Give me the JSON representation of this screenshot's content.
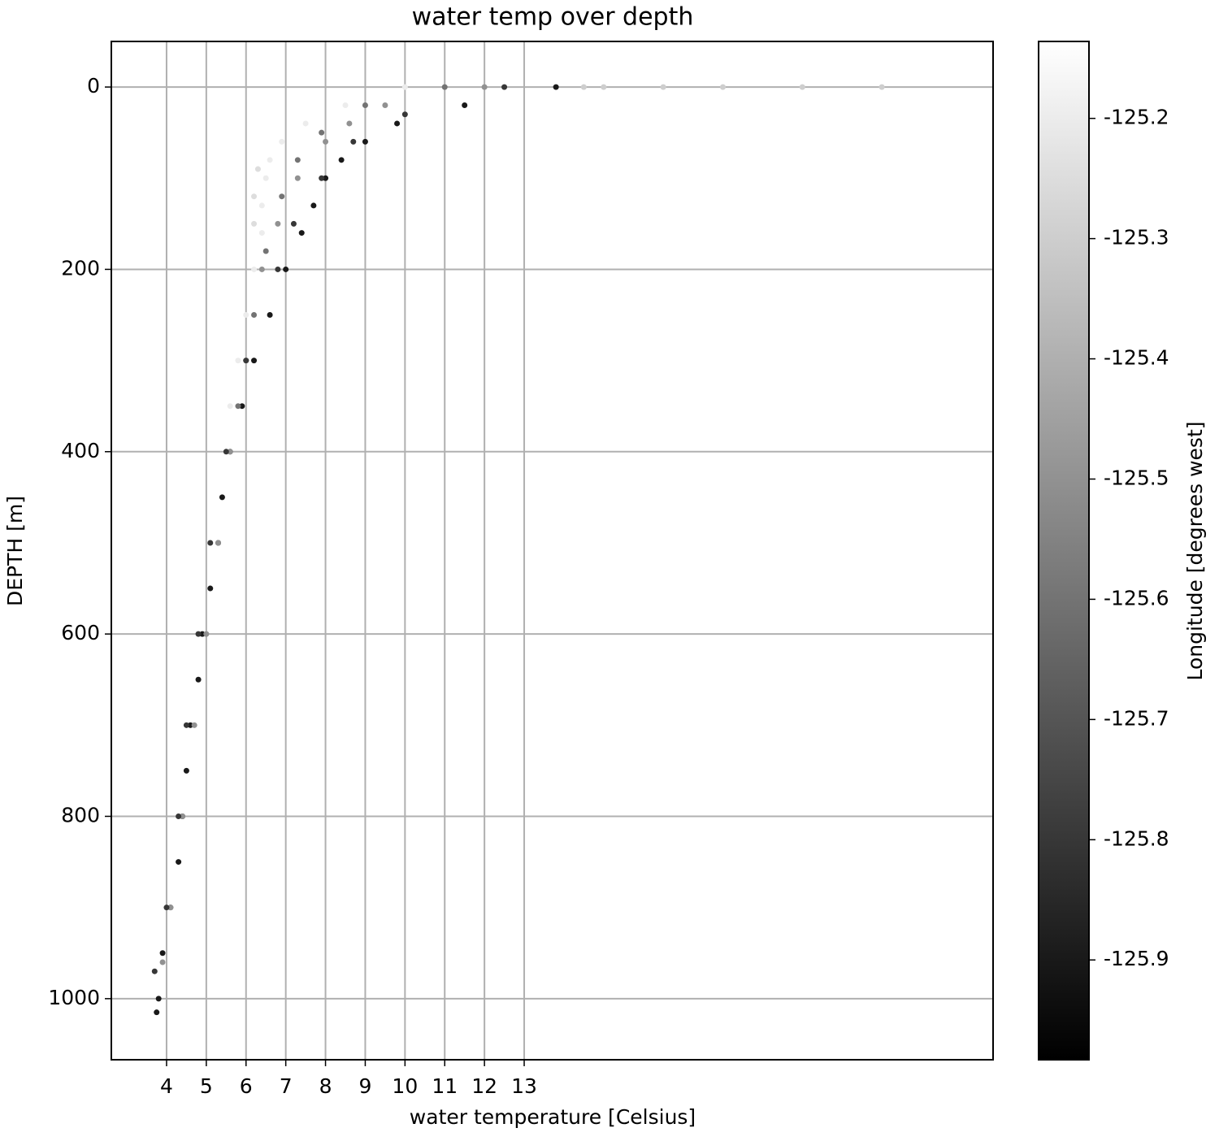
{
  "chart_data": {
    "type": "scatter",
    "title": "water temp over depth",
    "x_label": "water temperature [Celsius]",
    "y_label": "DEPTH [m]",
    "colorbar_label": "Longitude [degrees west]",
    "colormap": "gray",
    "grid": true,
    "xlim": [
      2.61,
      24.8
    ],
    "xticks": [
      4,
      5,
      6,
      7,
      8,
      9,
      10,
      11,
      12,
      13
    ],
    "ylim": [
      1067,
      -50
    ],
    "yticks": [
      0,
      200,
      400,
      600,
      800,
      1000
    ],
    "clim": [
      -125.983,
      -125.136
    ],
    "cticks": [
      -125.2,
      -125.3,
      -125.4,
      -125.5,
      -125.6,
      -125.7,
      -125.8,
      -125.9
    ],
    "x": [
      13.8,
      11.5,
      9.8,
      9.0,
      8.4,
      8.0,
      7.7,
      7.4,
      7.0,
      6.6,
      6.2,
      5.9,
      5.6,
      5.4,
      5.3,
      5.1,
      4.9,
      4.8,
      4.6,
      4.5,
      4.4,
      4.3,
      4.1,
      3.9,
      3.8,
      3.75,
      10,
      8.5,
      7.5,
      6.9,
      6.6,
      6.5,
      6.4,
      6.4,
      6.2,
      6.0,
      5.8,
      5.6,
      5.5,
      6.3,
      6.2,
      6.2,
      12,
      9.5,
      8.6,
      8.0,
      7.3,
      6.8,
      6.4,
      6.0,
      5.6,
      5.3,
      5.0,
      4.7,
      4.4,
      4.1,
      3.9,
      20,
      22,
      18,
      15,
      16.5,
      14.5,
      12.5,
      10,
      8.7,
      7.9,
      7.2,
      6.8,
      6.0,
      5.5,
      5.1,
      4.8,
      4.5,
      4.3,
      4.0,
      3.7,
      11,
      9,
      7.9,
      7.3,
      6.9,
      6.5,
      6.2,
      5.8
    ],
    "y": [
      0,
      20,
      40,
      60,
      80,
      100,
      130,
      160,
      200,
      250,
      300,
      350,
      400,
      450,
      500,
      550,
      600,
      650,
      700,
      750,
      800,
      850,
      900,
      950,
      1000,
      1015,
      0,
      20,
      40,
      60,
      80,
      100,
      130,
      160,
      200,
      250,
      300,
      350,
      400,
      90,
      120,
      150,
      0,
      20,
      40,
      60,
      100,
      150,
      200,
      300,
      400,
      500,
      600,
      700,
      800,
      900,
      960,
      0,
      0,
      0,
      0,
      0,
      0,
      0,
      30,
      60,
      100,
      150,
      200,
      300,
      400,
      500,
      600,
      700,
      800,
      900,
      970,
      0,
      20,
      50,
      80,
      120,
      180,
      250,
      350
    ],
    "c": [
      -125.9,
      -125.9,
      -125.9,
      -125.9,
      -125.9,
      -125.9,
      -125.9,
      -125.9,
      -125.9,
      -125.9,
      -125.9,
      -125.9,
      -125.9,
      -125.9,
      -125.9,
      -125.9,
      -125.9,
      -125.9,
      -125.9,
      -125.9,
      -125.9,
      -125.9,
      -125.9,
      -125.9,
      -125.9,
      -125.9,
      -125.2,
      -125.2,
      -125.2,
      -125.2,
      -125.2,
      -125.2,
      -125.2,
      -125.2,
      -125.2,
      -125.2,
      -125.2,
      -125.2,
      -125.2,
      -125.25,
      -125.25,
      -125.25,
      -125.5,
      -125.5,
      -125.5,
      -125.5,
      -125.5,
      -125.5,
      -125.5,
      -125.5,
      -125.5,
      -125.5,
      -125.5,
      -125.5,
      -125.5,
      -125.5,
      -125.5,
      -125.3,
      -125.3,
      -125.3,
      -125.3,
      -125.3,
      -125.3,
      -125.8,
      -125.8,
      -125.8,
      -125.8,
      -125.8,
      -125.8,
      -125.8,
      -125.8,
      -125.8,
      -125.8,
      -125.8,
      -125.8,
      -125.8,
      -125.8,
      -125.6,
      -125.6,
      -125.6,
      -125.6,
      -125.6,
      -125.6,
      -125.6,
      -125.6
    ]
  }
}
